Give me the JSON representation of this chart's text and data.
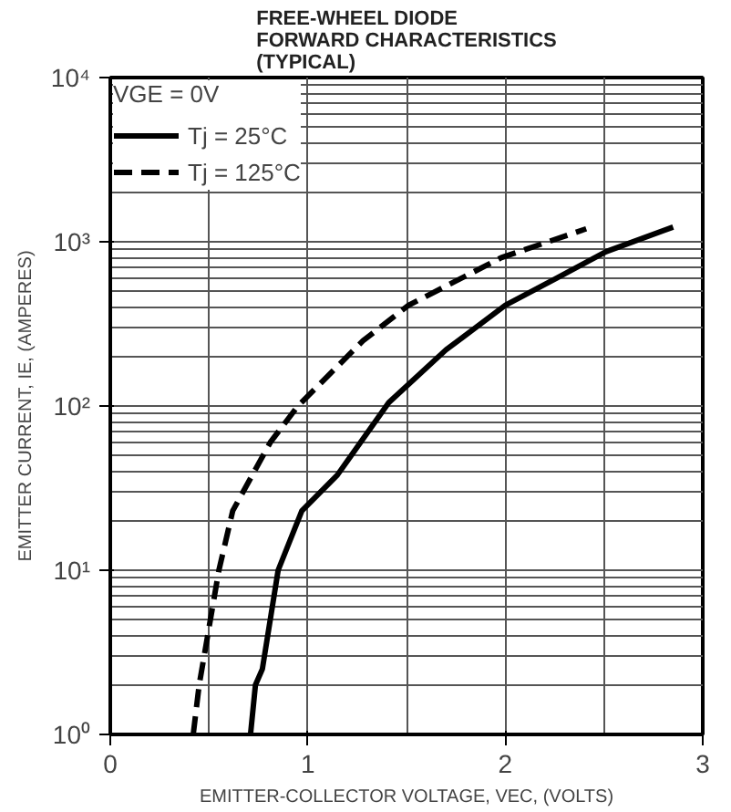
{
  "chart_data": {
    "type": "line",
    "title": "FREE-WHEEL DIODE\nFORWARD CHARACTERISTICS\n(TYPICAL)",
    "xlabel": "EMITTER-COLLECTOR VOLTAGE, VEC, (VOLTS)",
    "ylabel": "EMITTER CURRENT, IE, (AMPERES)",
    "legend_title": "VGE = 0V",
    "log": "y",
    "grid": true,
    "legend": "top left",
    "marker": "none",
    "xlim": [
      0,
      3
    ],
    "xticks": [
      0,
      1,
      2,
      3
    ],
    "ylim": [
      1,
      10000
    ],
    "yticks": [
      {
        "value": 1,
        "label": "10⁰"
      },
      {
        "value": 10,
        "label": "10¹"
      },
      {
        "value": 100,
        "label": "10²"
      },
      {
        "value": 1000,
        "label": "10³"
      },
      {
        "value": 10000,
        "label": "10⁴"
      }
    ],
    "series": [
      {
        "name": "Tj = 25°C",
        "color": "#000000",
        "line_style": "solid",
        "x": [
          0.71,
          0.735,
          0.77,
          0.85,
          0.97,
          1.15,
          1.41,
          1.7,
          2.0,
          2.26,
          2.51,
          2.85
        ],
        "values": [
          1,
          2,
          2.5,
          10,
          23,
          38,
          105,
          220,
          410,
          600,
          870,
          1230
        ]
      },
      {
        "name": "Tj = 125°C",
        "color": "#000000",
        "line_style": "dashed",
        "x": [
          0.42,
          0.45,
          0.55,
          0.62,
          0.81,
          0.95,
          1.28,
          1.51,
          1.98,
          2.41
        ],
        "values": [
          1,
          2,
          10,
          23,
          60,
          100,
          250,
          410,
          800,
          1200
        ]
      }
    ]
  }
}
